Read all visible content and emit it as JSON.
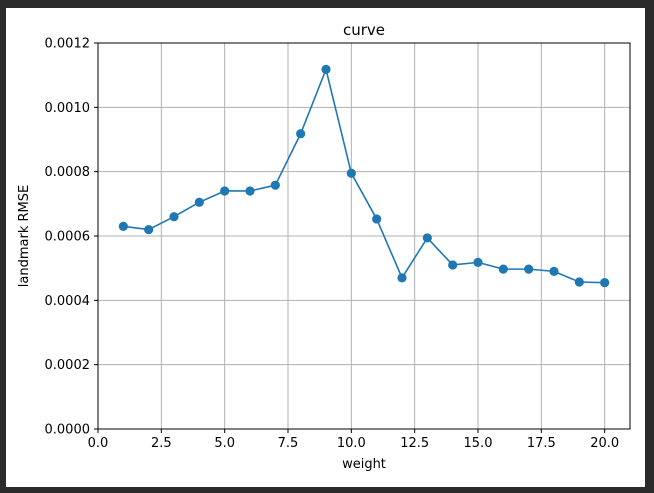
{
  "colors": {
    "series": "#1f77b4",
    "grid": "#b0b0b0",
    "frame_bg": "#2b2b2b",
    "plot_bg": "#ffffff"
  },
  "chart_data": {
    "type": "line",
    "title": "curve",
    "xlabel": "weight",
    "ylabel": "landmark RMSE",
    "xlim": [
      0.0,
      21.0
    ],
    "ylim": [
      0.0,
      0.0012
    ],
    "x_ticks": [
      0.0,
      2.5,
      5.0,
      7.5,
      10.0,
      12.5,
      15.0,
      17.5,
      20.0
    ],
    "x_tick_labels": [
      "0.0",
      "2.5",
      "5.0",
      "7.5",
      "10.0",
      "12.5",
      "15.0",
      "17.5",
      "20.0"
    ],
    "y_ticks": [
      0.0,
      0.0002,
      0.0004,
      0.0006,
      0.0008,
      0.001,
      0.0012
    ],
    "y_tick_labels": [
      "0.0000",
      "0.0002",
      "0.0004",
      "0.0006",
      "0.0008",
      "0.0010",
      "0.0012"
    ],
    "grid": true,
    "legend": "none",
    "marker": "circle",
    "x": [
      1,
      2,
      3,
      4,
      5,
      6,
      7,
      8,
      9,
      10,
      11,
      12,
      13,
      14,
      15,
      16,
      17,
      18,
      19,
      20
    ],
    "series": [
      {
        "values": [
          0.00063,
          0.00062,
          0.00066,
          0.000705,
          0.00074,
          0.00074,
          0.000758,
          0.000918,
          0.001118,
          0.000795,
          0.000653,
          0.00047,
          0.000594,
          0.00051,
          0.000518,
          0.000497,
          0.000497,
          0.00049,
          0.000457,
          0.000455
        ]
      }
    ]
  }
}
